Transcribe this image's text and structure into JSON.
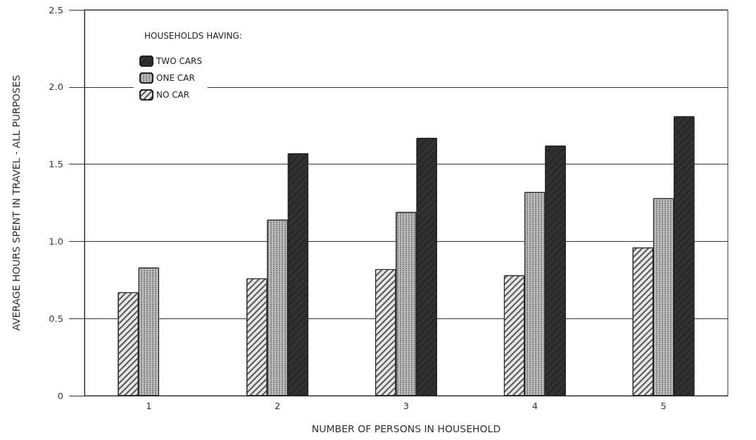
{
  "chart_data": {
    "type": "bar",
    "xlabel": "NUMBER OF PERSONS IN HOUSEHOLD",
    "ylabel": "AVERAGE HOURS SPENT IN TRAVEL - ALL PURPOSES",
    "legend_title": "HOUSEHOLDS HAVING:",
    "categories": [
      "1",
      "2",
      "3",
      "4",
      "5"
    ],
    "series": [
      {
        "name": "NO CAR",
        "color": "#e6e6e6",
        "values": [
          0.67,
          0.76,
          0.82,
          0.78,
          0.96
        ]
      },
      {
        "name": "ONE CAR",
        "color": "#bdbdbd",
        "values": [
          0.83,
          1.14,
          1.19,
          1.32,
          1.28
        ]
      },
      {
        "name": "TWO CARS",
        "color": "#333333",
        "values": [
          null,
          1.57,
          1.67,
          1.62,
          1.81
        ]
      }
    ],
    "ylim": [
      0,
      2.5
    ],
    "yticks": [
      0,
      {
        "value": 0.5,
        "label": "0.5"
      },
      {
        "value": 1,
        "label": "1.0"
      },
      {
        "value": 1.5,
        "label": "1.5"
      },
      {
        "value": 2,
        "label": "2.0"
      },
      2.5
    ],
    "grid": "y",
    "legend": "top left"
  }
}
